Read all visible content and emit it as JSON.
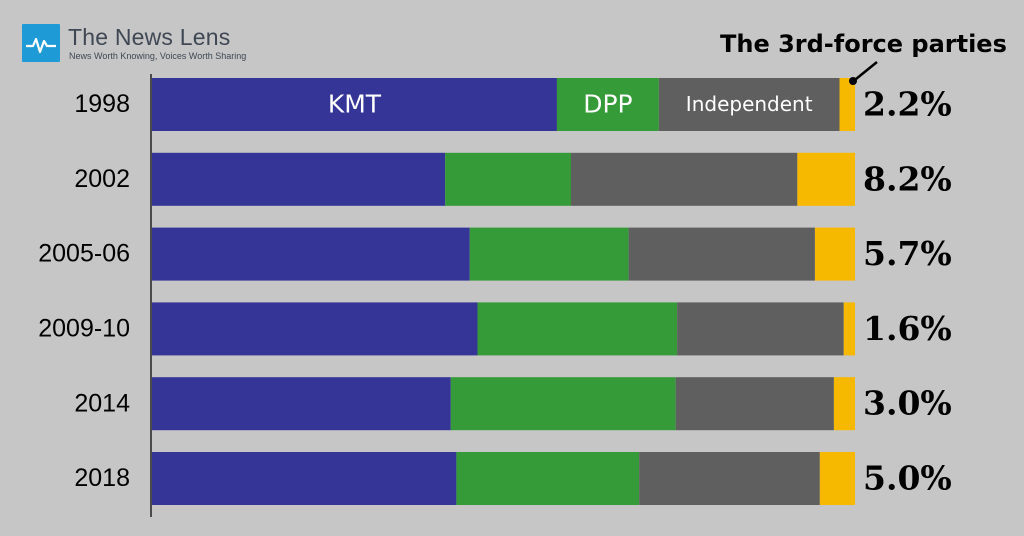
{
  "brand": {
    "name": "The News Lens",
    "tagline": "News Worth Knowing, Voices Worth Sharing"
  },
  "annotation": "The 3rd-force parties",
  "chart_data": {
    "type": "bar",
    "orientation": "horizontal",
    "stacked": true,
    "normalized": true,
    "categories": [
      "1998",
      "2002",
      "2005-06",
      "2009-10",
      "2014",
      "2018"
    ],
    "series": [
      {
        "name": "KMT",
        "color": "#343597",
        "values": [
          57.6,
          41.7,
          45.2,
          46.3,
          42.5,
          43.3
        ]
      },
      {
        "name": "DPP",
        "color": "#359a38",
        "values": [
          14.5,
          17.9,
          22.6,
          28.4,
          32.0,
          26.0
        ]
      },
      {
        "name": "Independent",
        "color": "#5f5f5f",
        "values": [
          25.7,
          32.2,
          26.5,
          23.7,
          22.5,
          25.7
        ]
      },
      {
        "name": "",
        "color": "#f7b800",
        "values": [
          2.2,
          8.2,
          5.7,
          1.6,
          3.0,
          5.0
        ]
      }
    ],
    "value_labels": [
      "2.2%",
      "8.2%",
      "5.7%",
      "1.6%",
      "3.0%",
      "5.0%"
    ],
    "legend": "inline labels on first bar",
    "grid": false
  }
}
